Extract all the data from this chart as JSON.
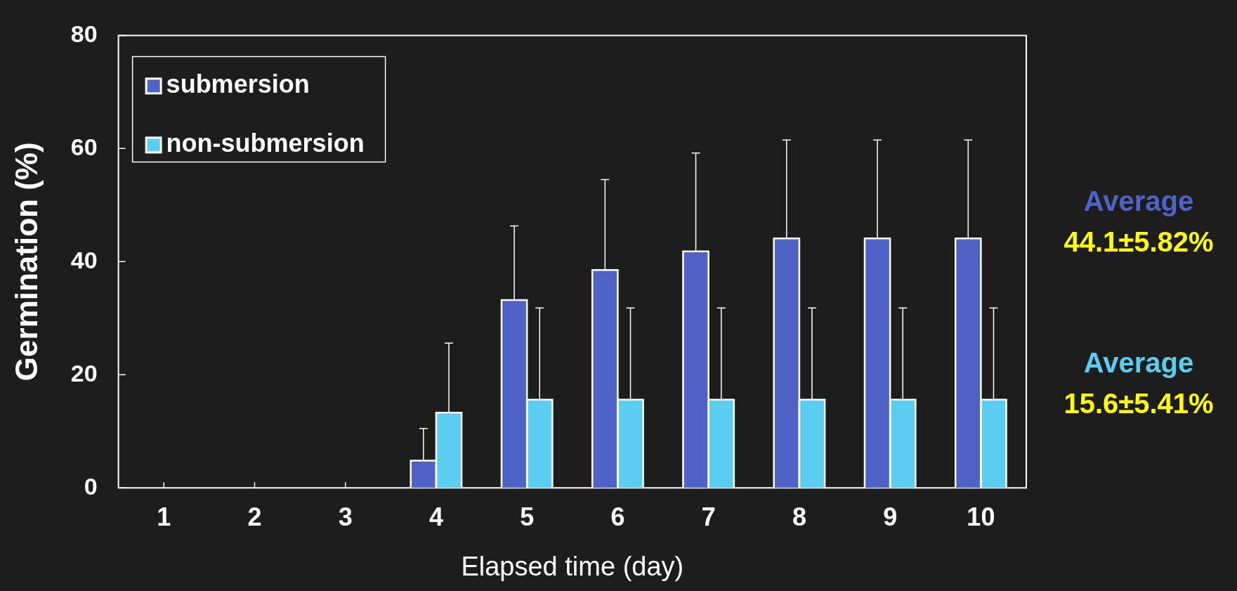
{
  "chart_data": {
    "type": "bar",
    "xlabel": "Elapsed time (day)",
    "ylabel": "Germination (%)",
    "categories": [
      "1",
      "2",
      "3",
      "4",
      "5",
      "6",
      "7",
      "8",
      "9",
      "10"
    ],
    "series": [
      {
        "name": "submersion",
        "color": "#4f63c6",
        "values": [
          0,
          0,
          0,
          4.8,
          33.2,
          38.5,
          41.8,
          44.1,
          44.1,
          44.1
        ],
        "errors": [
          null,
          null,
          null,
          [
            4.8,
            10.5
          ],
          [
            33.2,
            46.3
          ],
          [
            38.5,
            54.5
          ],
          [
            41.8,
            59.2
          ],
          [
            44.1,
            61.5
          ],
          [
            44.1,
            61.5
          ],
          [
            44.1,
            61.5
          ]
        ]
      },
      {
        "name": "non-submersion",
        "color": "#5bcdf0",
        "values": [
          0,
          0,
          0,
          13.3,
          15.6,
          15.6,
          15.6,
          15.6,
          15.6,
          15.6
        ],
        "errors": [
          null,
          null,
          null,
          [
            13.3,
            25.6
          ],
          [
            15.6,
            31.8
          ],
          [
            15.6,
            31.8
          ],
          [
            15.6,
            31.8
          ],
          [
            15.6,
            31.8
          ],
          [
            15.6,
            31.8
          ],
          [
            15.6,
            31.8
          ]
        ]
      }
    ],
    "ylim": [
      0,
      80
    ],
    "yticks": [
      0,
      20,
      40,
      60,
      80
    ],
    "grid": false,
    "legend": "top left",
    "annotations": [
      "Average\n44.1±5.82%",
      "Average\n15.6±5.41%"
    ]
  }
}
